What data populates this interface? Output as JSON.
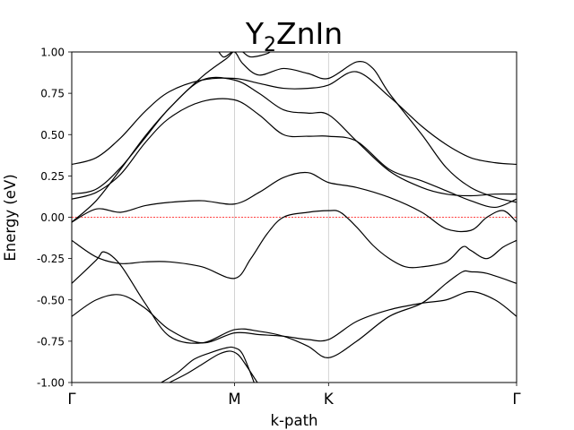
{
  "chart_data": {
    "type": "line",
    "title": {
      "main": "Y",
      "sub": "2",
      "rest": "ZnIn"
    },
    "xlabel": "k-path",
    "ylabel": "Energy (eV)",
    "ylim": [
      -1.0,
      1.0
    ],
    "yticks": [
      "-1.00",
      "-0.75",
      "-0.50",
      "-0.25",
      "0.00",
      "0.25",
      "0.50",
      "0.75",
      "1.00"
    ],
    "ytick_values": [
      -1.0,
      -0.75,
      -0.5,
      -0.25,
      0.0,
      0.25,
      0.5,
      0.75,
      1.0
    ],
    "high_symmetry_points": [
      {
        "label": "Γ",
        "k": 0.0
      },
      {
        "label": "M",
        "k": 1.0
      },
      {
        "label": "K",
        "k": 1.577
      },
      {
        "label": "Γ",
        "k": 2.732
      }
    ],
    "fermi_level": 0.0,
    "colors": {
      "bands": "#000000",
      "fermi": "#ff0000",
      "vlines": "#c8c8c8"
    },
    "bands": [
      {
        "k": [
          0,
          0.15,
          0.3,
          0.45,
          0.6,
          0.8,
          1.0,
          1.15,
          1.3,
          1.45,
          1.577,
          1.75,
          1.95,
          2.15,
          2.3,
          2.45,
          2.6,
          2.732
        ],
        "e": [
          -0.6,
          -0.5,
          -0.47,
          -0.55,
          -0.68,
          -0.76,
          -0.7,
          -0.71,
          -0.72,
          -0.74,
          -0.74,
          -0.63,
          -0.56,
          -0.52,
          -0.5,
          -0.45,
          -0.5,
          -0.6
        ]
      },
      {
        "k": [
          0,
          0.15,
          0.2,
          0.3,
          0.45,
          0.6,
          0.8,
          1.0,
          1.15,
          1.3,
          1.45,
          1.577,
          1.75,
          1.95,
          2.15,
          2.3,
          2.4,
          2.45,
          2.55,
          2.732
        ],
        "e": [
          -0.4,
          -0.26,
          -0.21,
          -0.29,
          -0.52,
          -0.72,
          -0.76,
          -0.68,
          -0.69,
          -0.72,
          -0.78,
          -0.85,
          -0.75,
          -0.6,
          -0.52,
          -0.4,
          -0.33,
          -0.33,
          -0.34,
          -0.4
        ]
      },
      {
        "k": [
          0,
          0.15,
          0.3,
          0.45,
          0.6,
          0.8,
          1.0,
          1.1,
          1.2,
          1.3,
          1.45,
          1.577,
          1.65,
          1.75,
          1.85,
          1.95,
          2.05,
          2.15,
          2.3,
          2.4,
          2.45,
          2.55,
          2.65,
          2.732
        ],
        "e": [
          -0.14,
          -0.24,
          -0.28,
          -0.27,
          -0.27,
          -0.3,
          -0.37,
          -0.25,
          -0.1,
          0.0,
          0.03,
          0.04,
          0.03,
          -0.06,
          -0.17,
          -0.25,
          -0.3,
          -0.3,
          -0.27,
          -0.18,
          -0.2,
          -0.25,
          -0.18,
          -0.14
        ]
      },
      {
        "k": [
          0,
          0.15,
          0.3,
          0.45,
          0.6,
          0.8,
          1.0,
          1.15,
          1.3,
          1.45,
          1.577,
          1.75,
          1.95,
          2.15,
          2.3,
          2.45,
          2.55,
          2.65,
          2.732
        ],
        "e": [
          -0.03,
          0.05,
          0.03,
          0.07,
          0.09,
          0.1,
          0.08,
          0.15,
          0.24,
          0.27,
          0.21,
          0.18,
          0.12,
          0.03,
          -0.07,
          -0.08,
          0.0,
          0.04,
          -0.03
        ]
      },
      {
        "k": [
          0,
          0.15,
          0.3,
          0.45,
          0.6,
          0.8,
          1.0,
          1.15,
          1.3,
          1.45,
          1.577,
          1.75,
          1.95,
          2.15,
          2.3,
          2.45,
          2.6,
          2.732
        ],
        "e": [
          0.11,
          0.15,
          0.26,
          0.45,
          0.6,
          0.7,
          0.71,
          0.62,
          0.5,
          0.49,
          0.49,
          0.46,
          0.29,
          0.22,
          0.16,
          0.1,
          0.06,
          0.11
        ]
      },
      {
        "k": [
          0,
          0.15,
          0.3,
          0.45,
          0.6,
          0.8,
          1.0,
          1.15,
          1.3,
          1.45,
          1.577,
          1.75,
          1.95,
          2.15,
          2.3,
          2.45,
          2.6,
          2.732
        ],
        "e": [
          0.14,
          0.17,
          0.3,
          0.48,
          0.66,
          0.83,
          0.83,
          0.75,
          0.65,
          0.63,
          0.62,
          0.46,
          0.28,
          0.18,
          0.14,
          0.13,
          0.14,
          0.14
        ]
      },
      {
        "k": [
          0,
          0.15,
          0.3,
          0.45,
          0.6,
          0.8,
          1.0,
          1.15,
          1.3,
          1.45,
          1.577,
          1.75,
          1.95,
          2.15,
          2.3,
          2.45,
          2.6,
          2.732
        ],
        "e": [
          0.32,
          0.36,
          0.48,
          0.64,
          0.76,
          0.83,
          0.84,
          0.81,
          0.78,
          0.78,
          0.8,
          0.88,
          0.73,
          0.55,
          0.44,
          0.36,
          0.33,
          0.32
        ]
      },
      {
        "k": [
          0,
          0.15,
          0.3,
          0.45,
          0.6,
          0.8,
          0.95,
          1.0,
          1.05,
          1.15,
          1.3,
          1.45,
          1.577,
          1.75,
          1.85,
          1.95,
          2.15,
          2.3,
          2.45,
          2.6,
          2.732
        ],
        "e": [
          -0.03,
          0.1,
          0.29,
          0.49,
          0.66,
          0.85,
          0.96,
          1.0,
          0.93,
          0.86,
          0.9,
          0.87,
          0.84,
          0.94,
          0.9,
          0.75,
          0.5,
          0.3,
          0.18,
          0.12,
          0.09
        ]
      },
      {
        "k": [
          0.89,
          0.93,
          0.97,
          1.01,
          1.05,
          1.1,
          1.2,
          1.24
        ],
        "e": [
          1.02,
          0.97,
          0.99,
          1.02,
          1.0,
          0.97,
          0.99,
          1.02
        ]
      },
      {
        "k": [
          0.55,
          0.65,
          0.75,
          0.85,
          0.95,
          1.0,
          1.05,
          1.12
        ],
        "e": [
          -1.0,
          -0.94,
          -0.86,
          -0.82,
          -0.79,
          -0.79,
          -0.83,
          -1.0
        ]
      },
      {
        "k": [
          0.6,
          0.7,
          0.8,
          0.9,
          0.97,
          1.02,
          1.06,
          1.14
        ],
        "e": [
          -1.0,
          -0.95,
          -0.89,
          -0.83,
          -0.81,
          -0.83,
          -0.88,
          -1.0
        ]
      }
    ]
  }
}
